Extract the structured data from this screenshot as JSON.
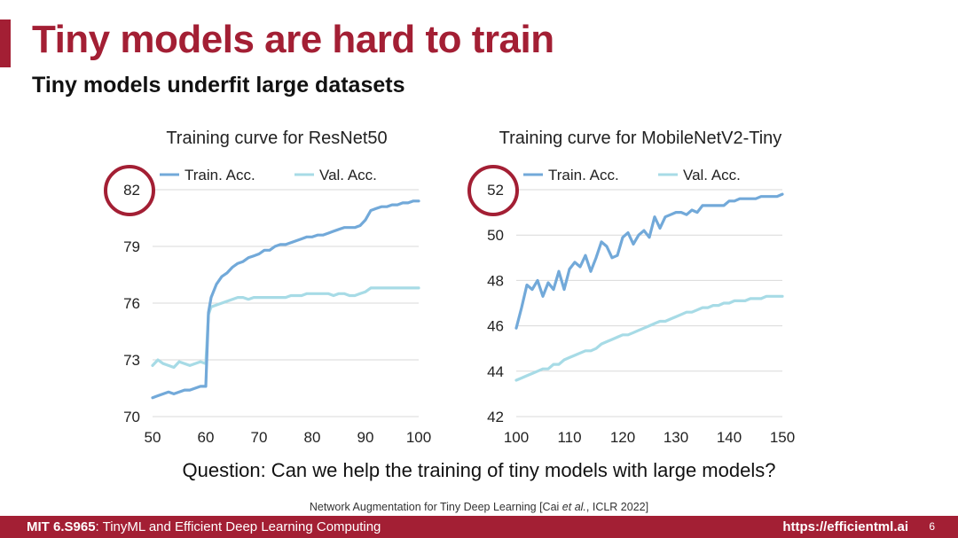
{
  "slide": {
    "title": "Tiny models are hard to train",
    "subtitle": "Tiny models underfit large datasets",
    "question": "Question: Can we help the training of tiny models with large models?",
    "citation": {
      "prefix": "Network Augmentation for Tiny Deep Learning [Cai ",
      "italic": "et al.",
      "suffix": ", ICLR 2022]"
    },
    "footer": {
      "course_code": "MIT 6.S965",
      "course_name": ": TinyML and Efficient Deep Learning Computing",
      "url": "https://efficientml.ai",
      "page_number": "6"
    }
  },
  "colors": {
    "accent": "#a31f34",
    "train": "#72a9d9",
    "val": "#a7dbe6",
    "grid": "#d9d9d9",
    "highlight_circle": "#a31f34"
  },
  "chart_data": [
    {
      "type": "line",
      "title": "Training curve for ResNet50",
      "xlabel": "",
      "ylabel": "",
      "xlim": [
        50,
        100
      ],
      "ylim": [
        70,
        82
      ],
      "x_ticks": [
        50,
        60,
        70,
        80,
        90,
        100
      ],
      "y_ticks": [
        70,
        73,
        76,
        79,
        82
      ],
      "grid": true,
      "legend": "top",
      "highlighted_tick": 82,
      "series": [
        {
          "name": "Train. Acc.",
          "x": [
            50,
            51,
            52,
            53,
            54,
            55,
            56,
            57,
            58,
            59,
            60,
            60.5,
            61,
            62,
            63,
            64,
            65,
            66,
            67,
            68,
            69,
            70,
            71,
            72,
            73,
            74,
            75,
            76,
            77,
            78,
            79,
            80,
            81,
            82,
            83,
            84,
            85,
            86,
            87,
            88,
            89,
            90,
            91,
            92,
            93,
            94,
            95,
            96,
            97,
            98,
            99,
            100
          ],
          "values": [
            71.0,
            71.1,
            71.2,
            71.3,
            71.2,
            71.3,
            71.4,
            71.4,
            71.5,
            71.6,
            71.6,
            75.5,
            76.3,
            77.0,
            77.4,
            77.6,
            77.9,
            78.1,
            78.2,
            78.4,
            78.5,
            78.6,
            78.8,
            78.8,
            79.0,
            79.1,
            79.1,
            79.2,
            79.3,
            79.4,
            79.5,
            79.5,
            79.6,
            79.6,
            79.7,
            79.8,
            79.9,
            80.0,
            80.0,
            80.0,
            80.1,
            80.4,
            80.9,
            81.0,
            81.1,
            81.1,
            81.2,
            81.2,
            81.3,
            81.3,
            81.4,
            81.4
          ]
        },
        {
          "name": "Val. Acc.",
          "x": [
            50,
            51,
            52,
            53,
            54,
            55,
            56,
            57,
            58,
            59,
            60,
            60.5,
            61,
            62,
            63,
            64,
            65,
            66,
            67,
            68,
            69,
            70,
            71,
            72,
            73,
            74,
            75,
            76,
            77,
            78,
            79,
            80,
            81,
            82,
            83,
            84,
            85,
            86,
            87,
            88,
            89,
            90,
            91,
            92,
            93,
            94,
            95,
            96,
            97,
            98,
            99,
            100
          ],
          "values": [
            72.7,
            73.0,
            72.8,
            72.7,
            72.6,
            72.9,
            72.8,
            72.7,
            72.8,
            72.9,
            72.8,
            75.4,
            75.8,
            75.9,
            76.0,
            76.1,
            76.2,
            76.3,
            76.3,
            76.2,
            76.3,
            76.3,
            76.3,
            76.3,
            76.3,
            76.3,
            76.3,
            76.4,
            76.4,
            76.4,
            76.5,
            76.5,
            76.5,
            76.5,
            76.5,
            76.4,
            76.5,
            76.5,
            76.4,
            76.4,
            76.5,
            76.6,
            76.8,
            76.8,
            76.8,
            76.8,
            76.8,
            76.8,
            76.8,
            76.8,
            76.8,
            76.8
          ]
        }
      ]
    },
    {
      "type": "line",
      "title": "Training curve for MobileNetV2-Tiny",
      "xlabel": "",
      "ylabel": "",
      "xlim": [
        100,
        150
      ],
      "ylim": [
        42,
        52
      ],
      "x_ticks": [
        100,
        110,
        120,
        130,
        140,
        150
      ],
      "y_ticks": [
        42,
        44,
        46,
        48,
        50,
        52
      ],
      "grid": true,
      "legend": "top",
      "highlighted_tick": 52,
      "series": [
        {
          "name": "Train. Acc.",
          "x": [
            100,
            101,
            102,
            103,
            104,
            105,
            106,
            107,
            108,
            109,
            110,
            111,
            112,
            113,
            114,
            115,
            116,
            117,
            118,
            119,
            120,
            121,
            122,
            123,
            124,
            125,
            126,
            127,
            128,
            129,
            130,
            131,
            132,
            133,
            134,
            135,
            136,
            137,
            138,
            139,
            140,
            141,
            142,
            143,
            144,
            145,
            146,
            147,
            148,
            149,
            150
          ],
          "values": [
            45.9,
            46.8,
            47.8,
            47.6,
            48.0,
            47.3,
            47.9,
            47.6,
            48.4,
            47.6,
            48.5,
            48.8,
            48.6,
            49.1,
            48.4,
            49.0,
            49.7,
            49.5,
            49.0,
            49.1,
            49.9,
            50.1,
            49.6,
            50.0,
            50.2,
            49.9,
            50.8,
            50.3,
            50.8,
            50.9,
            51.0,
            51.0,
            50.9,
            51.1,
            51.0,
            51.3,
            51.3,
            51.3,
            51.3,
            51.3,
            51.5,
            51.5,
            51.6,
            51.6,
            51.6,
            51.6,
            51.7,
            51.7,
            51.7,
            51.7,
            51.8
          ]
        },
        {
          "name": "Val. Acc.",
          "x": [
            100,
            101,
            102,
            103,
            104,
            105,
            106,
            107,
            108,
            109,
            110,
            111,
            112,
            113,
            114,
            115,
            116,
            117,
            118,
            119,
            120,
            121,
            122,
            123,
            124,
            125,
            126,
            127,
            128,
            129,
            130,
            131,
            132,
            133,
            134,
            135,
            136,
            137,
            138,
            139,
            140,
            141,
            142,
            143,
            144,
            145,
            146,
            147,
            148,
            149,
            150
          ],
          "values": [
            43.6,
            43.7,
            43.8,
            43.9,
            44.0,
            44.1,
            44.1,
            44.3,
            44.3,
            44.5,
            44.6,
            44.7,
            44.8,
            44.9,
            44.9,
            45.0,
            45.2,
            45.3,
            45.4,
            45.5,
            45.6,
            45.6,
            45.7,
            45.8,
            45.9,
            46.0,
            46.1,
            46.2,
            46.2,
            46.3,
            46.4,
            46.5,
            46.6,
            46.6,
            46.7,
            46.8,
            46.8,
            46.9,
            46.9,
            47.0,
            47.0,
            47.1,
            47.1,
            47.1,
            47.2,
            47.2,
            47.2,
            47.3,
            47.3,
            47.3,
            47.3
          ]
        }
      ]
    }
  ]
}
